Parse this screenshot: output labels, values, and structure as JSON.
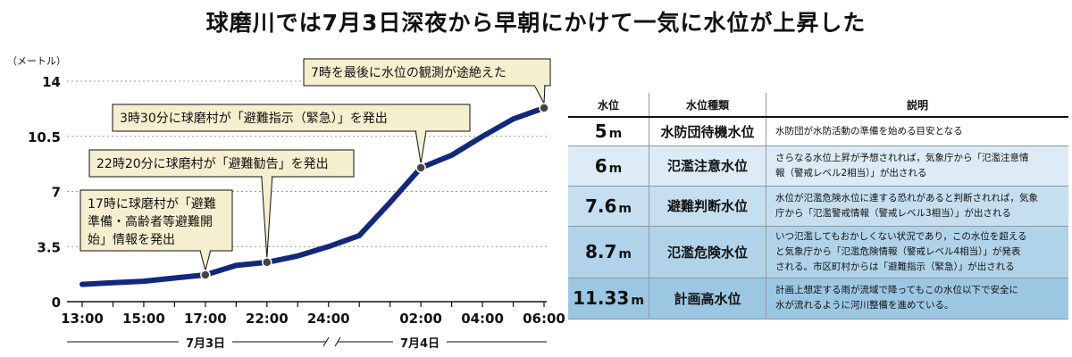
{
  "title": "球磨川では7月3日深夜から早朝にかけて一気に水位が上昇した",
  "chart_data": {
    "type": "line",
    "ylabel": "（メートル）",
    "ylim": [
      0,
      14
    ],
    "yticks": [
      "0",
      "3.5",
      "7",
      "10.5",
      "14"
    ],
    "x_tick_labels": [
      "13:00",
      "15:00",
      "17:00",
      "22:00",
      "24:00",
      "02:00",
      "04:00",
      "06:00"
    ],
    "date_labels": [
      "7月3日",
      "7月4日"
    ],
    "series": [
      {
        "values": [
          1.1,
          1.2,
          1.3,
          1.5,
          1.7,
          2.3,
          2.5,
          2.9,
          3.5,
          4.2,
          6.3,
          8.5,
          9.3,
          10.5,
          11.6,
          12.3
        ]
      }
    ],
    "annotations": [
      {
        "lines": [
          "17時に球磨村が「避難",
          "準備・高齢者等避難開",
          "始」情報を発出"
        ]
      },
      {
        "lines": [
          "22時20分に球磨村が「避難勧告」を発出"
        ]
      },
      {
        "lines": [
          "3時30分に球磨村が「避難指示（緊急）」を発出"
        ]
      },
      {
        "lines": [
          "7時を最後に水位の観測が途絶えた"
        ]
      }
    ]
  },
  "table": {
    "headers": [
      "水位",
      "水位種類",
      "説明"
    ],
    "rows": [
      {
        "level": "5",
        "unit": "m",
        "kind": "水防団待機水位",
        "bg": "#ffffff",
        "desc_lines": [
          "水防団が水防活動の準備を始める目安となる"
        ]
      },
      {
        "level": "6",
        "unit": "m",
        "kind": "氾濫注意水位",
        "bg": "#dcebf5",
        "desc_lines": [
          "さらなる水位上昇が予想されれば，気象庁から「氾濫注意情",
          "報（警戒レベル2相当）」が出される"
        ]
      },
      {
        "level": "7.6",
        "unit": "m",
        "kind": "避難判断水位",
        "bg": "#c6dff0",
        "desc_lines": [
          "水位が氾濫危険水位に達する恐れがあると判断されれば，気象",
          "庁から「氾濫警戒情報（警戒レベル3相当）」が出される"
        ]
      },
      {
        "level": "8.7",
        "unit": "m",
        "kind": "氾濫危険水位",
        "bg": "#b1d3ea",
        "desc_lines": [
          "いつ氾濫してもおかしくない状況であり，この水位を超える",
          "と気象庁から「氾濫危険情報（警戒レベル4相当）」が発表",
          "される。市区町村からは「避難指示（緊急）」が出される"
        ]
      },
      {
        "level": "11.33",
        "unit": "m",
        "kind": "計画高水位",
        "bg": "#9cc7e3",
        "desc_lines": [
          "計画上想定する雨が流域で降ってもこの水位以下で安全に",
          "水が流れるように河川整備を進めている。"
        ]
      }
    ]
  }
}
